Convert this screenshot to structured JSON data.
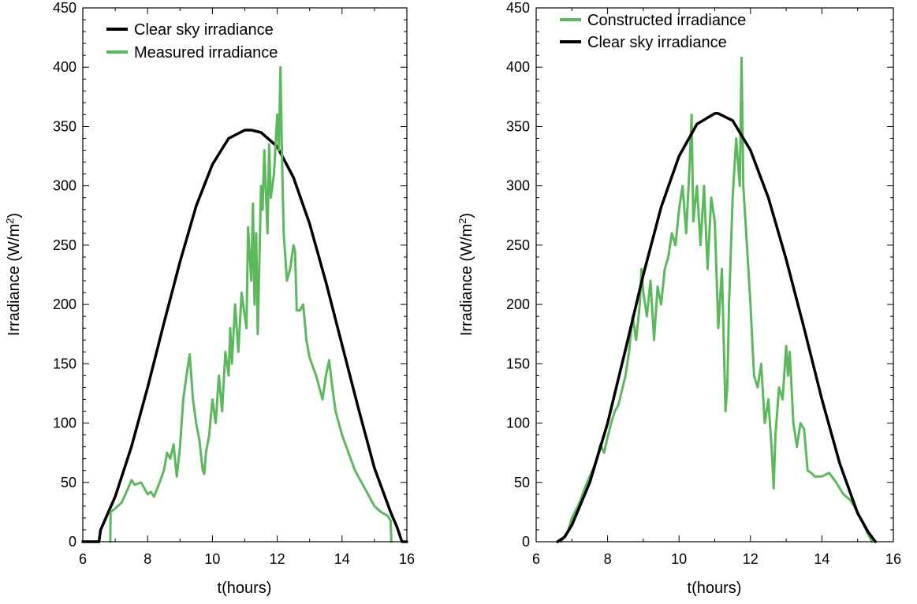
{
  "colors": {
    "clear_sky": "#000000",
    "measured": "#5cb85c",
    "axis": "#000000"
  },
  "chart_data": [
    {
      "id": "left",
      "type": "line",
      "xlabel": "t(hours)",
      "ylabel_main": "Irradiance (W/m",
      "ylabel_sup": "2",
      "ylabel_close": ")",
      "xlim": [
        6,
        16
      ],
      "ylim": [
        0,
        450
      ],
      "xticks": [
        6,
        8,
        10,
        12,
        14,
        16
      ],
      "yticks": [
        0,
        50,
        100,
        150,
        200,
        250,
        300,
        350,
        400,
        450
      ],
      "legend": [
        {
          "label": "Clear sky irradiance",
          "color": "#000000"
        },
        {
          "label": "Measured irradiance",
          "color": "#5cb85c"
        }
      ],
      "series": [
        {
          "name": "Clear sky irradiance",
          "color": "#000000",
          "x": [
            6.0,
            6.5,
            6.55,
            7.0,
            7.5,
            8.0,
            8.5,
            9.0,
            9.5,
            10.0,
            10.5,
            11.0,
            11.2,
            11.5,
            12.0,
            12.5,
            13.0,
            13.5,
            14.0,
            14.5,
            15.0,
            15.5,
            15.7,
            15.85,
            16.0
          ],
          "y": [
            0,
            0,
            10,
            38,
            80,
            130,
            184,
            236,
            283,
            318,
            340,
            347,
            347,
            345,
            333,
            307,
            268,
            219,
            166,
            113,
            62,
            25,
            12,
            0,
            0
          ]
        },
        {
          "name": "Measured irradiance",
          "color": "#5cb85c",
          "x": [
            6.85,
            6.86,
            7.0,
            7.2,
            7.4,
            7.5,
            7.6,
            7.8,
            8.0,
            8.1,
            8.2,
            8.4,
            8.5,
            8.6,
            8.7,
            8.8,
            8.9,
            9.0,
            9.1,
            9.2,
            9.3,
            9.4,
            9.5,
            9.6,
            9.7,
            9.75,
            9.8,
            9.9,
            10.0,
            10.1,
            10.2,
            10.3,
            10.4,
            10.5,
            10.55,
            10.6,
            10.7,
            10.8,
            10.9,
            11.0,
            11.05,
            11.1,
            11.2,
            11.25,
            11.3,
            11.35,
            11.4,
            11.5,
            11.55,
            11.6,
            11.7,
            11.75,
            11.8,
            11.9,
            12.0,
            12.05,
            12.1,
            12.15,
            12.2,
            12.3,
            12.4,
            12.5,
            12.55,
            12.6,
            12.7,
            12.8,
            12.9,
            13.0,
            13.2,
            13.4,
            13.5,
            13.6,
            13.7,
            13.8,
            14.0,
            14.2,
            14.4,
            14.6,
            14.8,
            15.0,
            15.2,
            15.4,
            15.5,
            15.52
          ],
          "y": [
            0,
            25,
            28,
            33,
            45,
            52,
            48,
            50,
            40,
            42,
            38,
            52,
            60,
            75,
            70,
            82,
            55,
            80,
            120,
            140,
            158,
            120,
            100,
            85,
            60,
            57,
            75,
            90,
            120,
            100,
            140,
            110,
            160,
            140,
            180,
            150,
            200,
            160,
            210,
            190,
            180,
            265,
            220,
            285,
            200,
            260,
            175,
            300,
            280,
            330,
            260,
            335,
            290,
            310,
            360,
            330,
            400,
            320,
            260,
            220,
            230,
            250,
            245,
            195,
            195,
            200,
            170,
            155,
            140,
            120,
            140,
            153,
            130,
            110,
            90,
            75,
            60,
            50,
            40,
            30,
            25,
            22,
            18,
            0
          ]
        }
      ]
    },
    {
      "id": "right",
      "type": "line",
      "xlabel": "t(hours)",
      "ylabel_main": "Irradiance (W/m",
      "ylabel_sup": "2",
      "ylabel_close": ")",
      "xlim": [
        6,
        16
      ],
      "ylim": [
        0,
        450
      ],
      "xticks": [
        6,
        8,
        10,
        12,
        14,
        16
      ],
      "yticks": [
        0,
        50,
        100,
        150,
        200,
        250,
        300,
        350,
        400,
        450
      ],
      "legend": [
        {
          "label": "Constructed irradiance",
          "color": "#5cb85c"
        },
        {
          "label": "Clear sky irradiance",
          "color": "#000000"
        }
      ],
      "series": [
        {
          "name": "Constructed irradiance",
          "color": "#5cb85c",
          "x": [
            6.7,
            6.9,
            7.0,
            7.2,
            7.4,
            7.6,
            7.7,
            7.8,
            7.9,
            8.0,
            8.1,
            8.2,
            8.3,
            8.5,
            8.6,
            8.7,
            8.8,
            8.9,
            8.95,
            9.0,
            9.1,
            9.2,
            9.3,
            9.4,
            9.5,
            9.6,
            9.7,
            9.8,
            9.9,
            10.0,
            10.1,
            10.2,
            10.3,
            10.35,
            10.4,
            10.5,
            10.6,
            10.7,
            10.8,
            10.9,
            11.0,
            11.1,
            11.2,
            11.3,
            11.35,
            11.4,
            11.5,
            11.6,
            11.7,
            11.75,
            11.8,
            11.9,
            12.0,
            12.1,
            12.2,
            12.3,
            12.4,
            12.5,
            12.6,
            12.65,
            12.7,
            12.8,
            12.9,
            13.0,
            13.05,
            13.1,
            13.2,
            13.3,
            13.4,
            13.5,
            13.6,
            13.7,
            13.8,
            14.0,
            14.2,
            14.4,
            14.6,
            14.8,
            15.0,
            15.2,
            15.4
          ],
          "y": [
            0,
            10,
            20,
            32,
            48,
            62,
            70,
            82,
            75,
            88,
            100,
            110,
            115,
            140,
            160,
            190,
            170,
            200,
            230,
            210,
            190,
            220,
            170,
            215,
            200,
            230,
            240,
            260,
            250,
            280,
            300,
            260,
            320,
            360,
            270,
            300,
            250,
            300,
            230,
            290,
            270,
            180,
            230,
            110,
            130,
            200,
            290,
            340,
            300,
            408,
            300,
            250,
            200,
            140,
            130,
            150,
            100,
            120,
            75,
            45,
            90,
            130,
            120,
            165,
            140,
            160,
            100,
            80,
            100,
            95,
            60,
            58,
            55,
            55,
            58,
            50,
            40,
            35,
            25,
            12,
            0
          ]
        },
        {
          "name": "Clear sky irradiance",
          "color": "#000000",
          "x": [
            6.6,
            6.8,
            7.0,
            7.5,
            8.0,
            8.5,
            9.0,
            9.5,
            10.0,
            10.5,
            11.0,
            11.1,
            11.5,
            12.0,
            12.5,
            13.0,
            13.5,
            14.0,
            14.5,
            15.0,
            15.3,
            15.5
          ],
          "y": [
            0,
            4,
            14,
            50,
            100,
            162,
            225,
            282,
            325,
            352,
            361,
            361,
            355,
            330,
            290,
            238,
            180,
            120,
            66,
            24,
            8,
            0
          ]
        }
      ]
    }
  ]
}
